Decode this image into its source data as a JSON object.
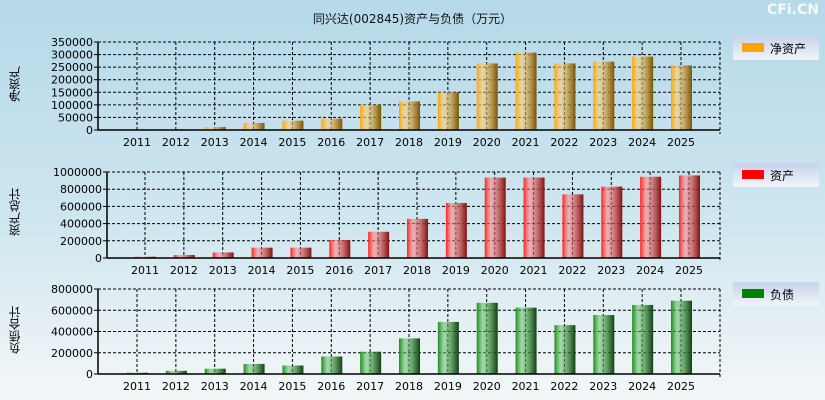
{
  "title": "同兴达(002845)资产与负债（万元）",
  "watermark": "CFi.CN",
  "chart_data": [
    {
      "type": "bar",
      "title": "净资产",
      "ylabel": "净资产",
      "legend": "净资产",
      "color": "#ffa500",
      "dark": "#7a5200",
      "categories": [
        "2011",
        "2012",
        "2013",
        "2014",
        "2015",
        "2016",
        "2017",
        "2018",
        "2019",
        "2020",
        "2021",
        "2022",
        "2023",
        "2024",
        "2025"
      ],
      "values": [
        3000,
        3000,
        12000,
        28000,
        37000,
        45000,
        100000,
        114000,
        150000,
        265000,
        308000,
        265000,
        272000,
        292000,
        257000
      ],
      "ylim": [
        0,
        350000
      ],
      "yticks": [
        "0",
        "50000",
        "100000",
        "150000",
        "200000",
        "250000",
        "300000",
        "350000"
      ],
      "legend_position": "right"
    },
    {
      "type": "bar",
      "title": "资产",
      "ylabel": "资产总计",
      "legend": "资产",
      "color": "#ff2020",
      "dark": "#801010",
      "categories": [
        "2011",
        "2012",
        "2013",
        "2014",
        "2015",
        "2016",
        "2017",
        "2018",
        "2019",
        "2020",
        "2021",
        "2022",
        "2023",
        "2024",
        "2025"
      ],
      "values": [
        15000,
        35000,
        65000,
        120000,
        120000,
        210000,
        305000,
        455000,
        640000,
        935000,
        935000,
        740000,
        830000,
        945000,
        960000
      ],
      "ylim": [
        0,
        1000000
      ],
      "yticks": [
        "0",
        "200000",
        "400000",
        "600000",
        "800000",
        "1000000"
      ],
      "legend_position": "right"
    },
    {
      "type": "bar",
      "title": "负债",
      "ylabel": "负债合计",
      "legend": "负债",
      "color": "#1e8a1e",
      "dark": "#0d400d",
      "categories": [
        "2011",
        "2012",
        "2013",
        "2014",
        "2015",
        "2016",
        "2017",
        "2018",
        "2019",
        "2020",
        "2021",
        "2022",
        "2023",
        "2024",
        "2025"
      ],
      "values": [
        12000,
        30000,
        50000,
        95000,
        80000,
        165000,
        210000,
        335000,
        490000,
        670000,
        625000,
        460000,
        555000,
        650000,
        690000
      ],
      "ylim": [
        0,
        800000
      ],
      "yticks": [
        "0",
        "200000",
        "400000",
        "600000",
        "800000"
      ],
      "legend_position": "right"
    }
  ]
}
